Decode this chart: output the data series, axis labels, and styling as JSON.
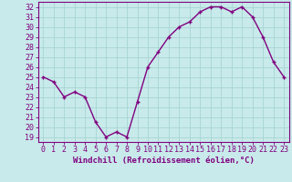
{
  "x": [
    0,
    1,
    2,
    3,
    4,
    5,
    6,
    7,
    8,
    9,
    10,
    11,
    12,
    13,
    14,
    15,
    16,
    17,
    18,
    19,
    20,
    21,
    22,
    23
  ],
  "y": [
    25.0,
    24.5,
    23.0,
    23.5,
    23.0,
    20.5,
    19.0,
    19.5,
    19.0,
    22.5,
    26.0,
    27.5,
    29.0,
    30.0,
    30.5,
    31.5,
    32.0,
    32.0,
    31.5,
    32.0,
    31.0,
    29.0,
    26.5,
    25.0
  ],
  "line_color": "#800080",
  "marker": "+",
  "marker_color": "#800080",
  "bg_color": "#c8eaea",
  "grid_color": "#a8d4d4",
  "xlabel": "Windchill (Refroidissement éolien,°C)",
  "ylabel": "",
  "xlim": [
    -0.5,
    23.5
  ],
  "ylim": [
    18.5,
    32.5
  ],
  "yticks": [
    19,
    20,
    21,
    22,
    23,
    24,
    25,
    26,
    27,
    28,
    29,
    30,
    31,
    32
  ],
  "xticks": [
    0,
    1,
    2,
    3,
    4,
    5,
    6,
    7,
    8,
    9,
    10,
    11,
    12,
    13,
    14,
    15,
    16,
    17,
    18,
    19,
    20,
    21,
    22,
    23
  ],
  "xtick_labels": [
    "0",
    "1",
    "2",
    "3",
    "4",
    "5",
    "6",
    "7",
    "8",
    "9",
    "10",
    "11",
    "12",
    "13",
    "14",
    "15",
    "16",
    "17",
    "18",
    "19",
    "20",
    "21",
    "22",
    "23"
  ],
  "tick_color": "#800080",
  "label_color": "#800080",
  "spine_color": "#800080",
  "font_size": 6,
  "xlabel_fontsize": 6.5,
  "linewidth": 1.0,
  "markersize": 3.5
}
